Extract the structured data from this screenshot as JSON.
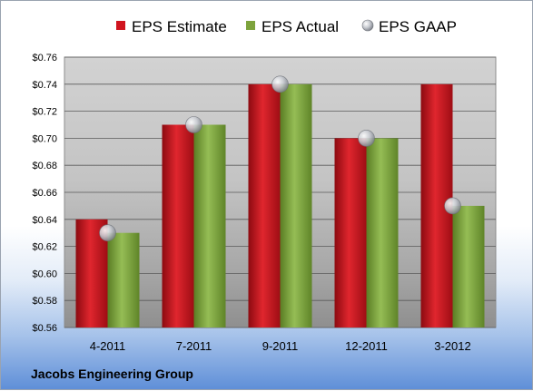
{
  "chart_data": {
    "type": "bar",
    "categories": [
      "4-2011",
      "7-2011",
      "9-2011",
      "12-2011",
      "3-2012"
    ],
    "series": [
      {
        "name": "EPS Estimate",
        "values": [
          0.64,
          0.71,
          0.74,
          0.7,
          0.74
        ],
        "color": "#d0141e"
      },
      {
        "name": "EPS Actual",
        "values": [
          0.63,
          0.71,
          0.74,
          0.7,
          0.65
        ],
        "color": "#7da33c"
      },
      {
        "name": "EPS GAAP",
        "values": [
          0.63,
          0.71,
          0.74,
          0.7,
          0.65
        ],
        "color": "#b8bcc4",
        "marker": "sphere"
      }
    ],
    "ylim": [
      0.56,
      0.76
    ],
    "yticks": [
      "$0.76",
      "$0.74",
      "$0.72",
      "$0.70",
      "$0.68",
      "$0.66",
      "$0.64",
      "$0.62",
      "$0.60",
      "$0.58",
      "$0.56"
    ],
    "ytick_values": [
      0.76,
      0.74,
      0.72,
      0.7,
      0.68,
      0.66,
      0.64,
      0.62,
      0.6,
      0.58,
      0.56
    ],
    "grid": true,
    "legend": "top",
    "footer": "Jacobs Engineering Group"
  }
}
